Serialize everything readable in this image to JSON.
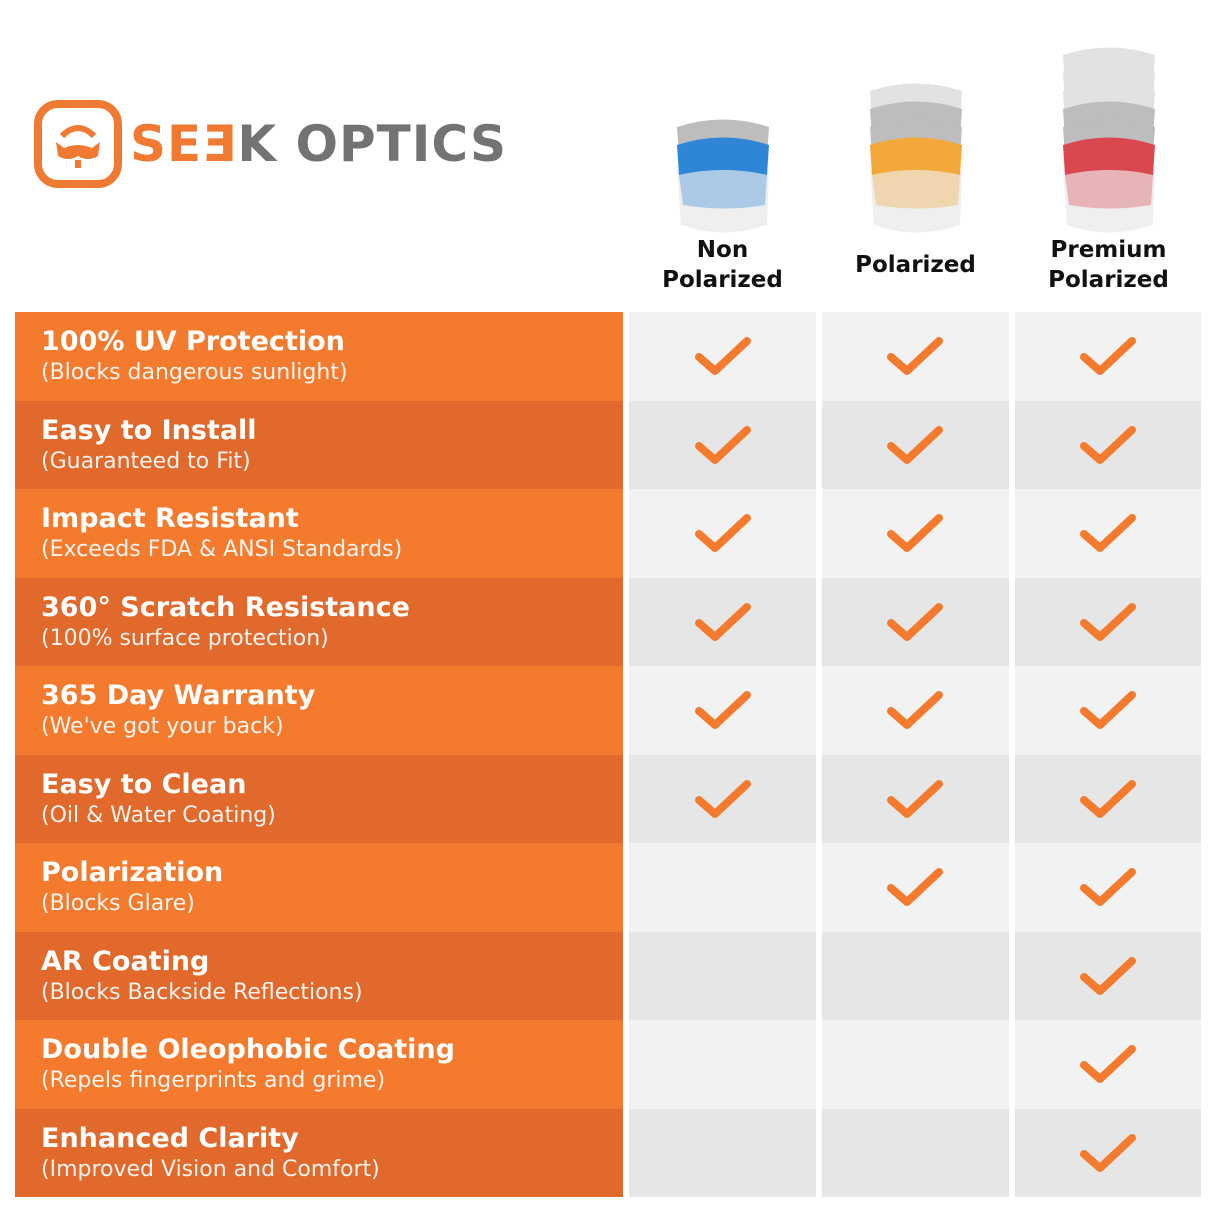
{
  "brand": {
    "part1": "SE",
    "part2": "E",
    "part3": "K OPTICS",
    "accent": "#F47A2E",
    "gray": "#737373"
  },
  "columns": [
    {
      "line1": "Non",
      "line2": "Polarized",
      "lens_color": "#2F86D6"
    },
    {
      "line1": "",
      "line2": "Polarized",
      "lens_color": "#F2A93A"
    },
    {
      "line1": "Premium",
      "line2": "Polarized",
      "lens_color": "#D9474F"
    }
  ],
  "features": [
    {
      "title": "100% UV Protection",
      "subtitle": "(Blocks dangerous sunlight)",
      "checks": [
        true,
        true,
        true
      ]
    },
    {
      "title": "Easy to Install",
      "subtitle": "(Guaranteed to Fit)",
      "checks": [
        true,
        true,
        true
      ]
    },
    {
      "title": "Impact Resistant",
      "subtitle": "(Exceeds FDA & ANSI Standards)",
      "checks": [
        true,
        true,
        true
      ]
    },
    {
      "title": "360° Scratch Resistance",
      "subtitle": "(100% surface protection)",
      "checks": [
        true,
        true,
        true
      ]
    },
    {
      "title": "365 Day Warranty",
      "subtitle": "(We've got your back)",
      "checks": [
        true,
        true,
        true
      ]
    },
    {
      "title": "Easy to Clean",
      "subtitle": "(Oil & Water Coating)",
      "checks": [
        true,
        true,
        true
      ]
    },
    {
      "title": "Polarization",
      "subtitle": "(Blocks Glare)",
      "checks": [
        false,
        true,
        true
      ]
    },
    {
      "title": "AR Coating",
      "subtitle": "(Blocks Backside Reflections)",
      "checks": [
        false,
        false,
        true
      ]
    },
    {
      "title": "Double Oleophobic Coating",
      "subtitle": "(Repels fingerprints and grime)",
      "checks": [
        false,
        false,
        true
      ]
    },
    {
      "title": "Enhanced Clarity",
      "subtitle": "(Improved Vision and Comfort)",
      "checks": [
        false,
        false,
        true
      ]
    }
  ]
}
